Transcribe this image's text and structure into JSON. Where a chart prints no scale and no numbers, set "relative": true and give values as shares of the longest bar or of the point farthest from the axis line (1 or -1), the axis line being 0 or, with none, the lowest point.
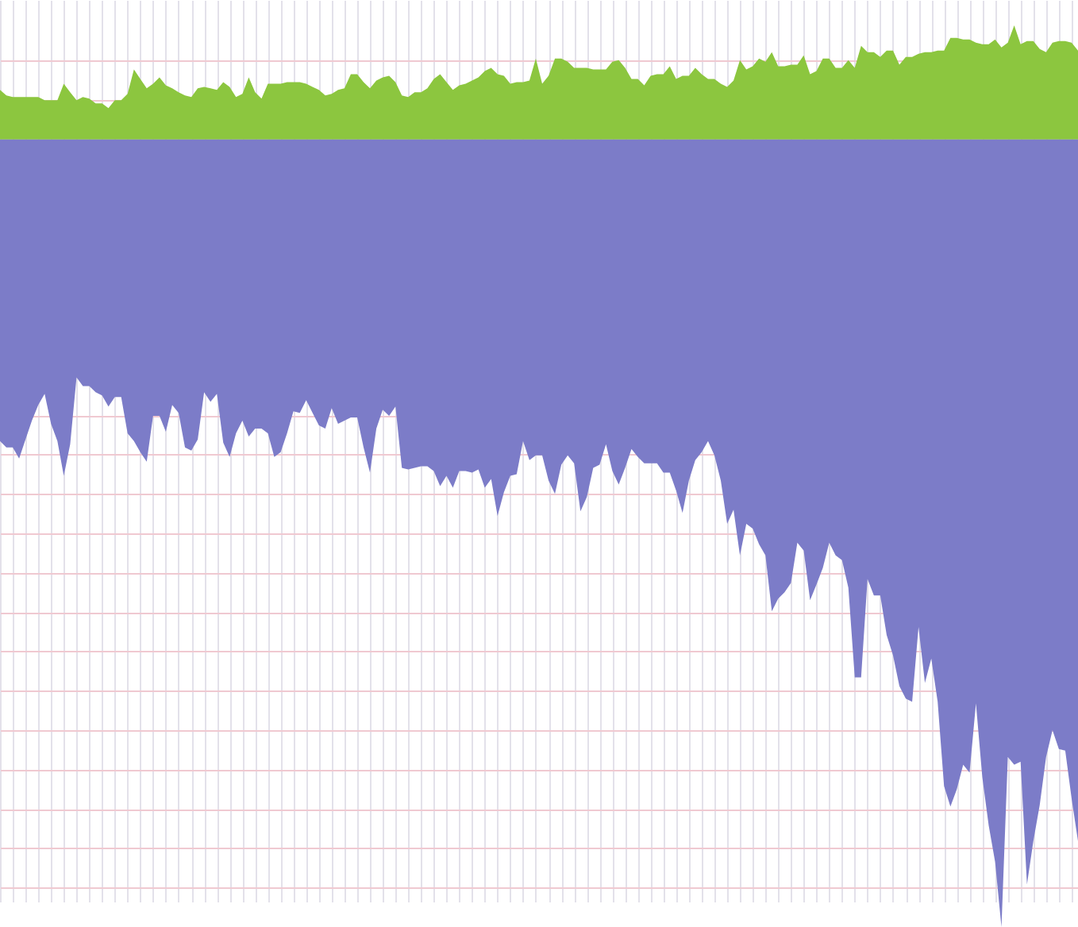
{
  "chart_data": {
    "type": "area",
    "relative": true,
    "grid": true,
    "categories": [
      null,
      null,
      null,
      null,
      null,
      null,
      null,
      null,
      null,
      null,
      null,
      null,
      null,
      null,
      null,
      null,
      null,
      null,
      null,
      null,
      null,
      null,
      null,
      null,
      null,
      null,
      null,
      null,
      null,
      null,
      null,
      null,
      null,
      null,
      null,
      null,
      null,
      null,
      null,
      null,
      null,
      null,
      null,
      null,
      null,
      null,
      null,
      null,
      null,
      null,
      null,
      null,
      null,
      null,
      null,
      null,
      null,
      null,
      null,
      null,
      null,
      null,
      null,
      null,
      null,
      null,
      null,
      null,
      null,
      null,
      null,
      null,
      null,
      null,
      null,
      null,
      null,
      null,
      null,
      null,
      null,
      null,
      null,
      null,
      null,
      null,
      null,
      null,
      null,
      null,
      null,
      null,
      null,
      null,
      null,
      null,
      null,
      null,
      null,
      null,
      null,
      null,
      null,
      null,
      null,
      null,
      null,
      null,
      null,
      null,
      null,
      null,
      null,
      null,
      null,
      null,
      null,
      null,
      null,
      null,
      null,
      null,
      null,
      null,
      null,
      null,
      null,
      null,
      null,
      null,
      null,
      null,
      null,
      null,
      null,
      null,
      null,
      null,
      null,
      null,
      null,
      null,
      null,
      null,
      null,
      null,
      null,
      null,
      null,
      null,
      null,
      null,
      null,
      null,
      null,
      null,
      null,
      null,
      null,
      null,
      null,
      null,
      null,
      null,
      null,
      null,
      null,
      null,
      null,
      null
    ],
    "series": [
      {
        "color": "#8cc63f",
        "values": [
          0.063,
          0.056,
          0.054,
          0.054,
          0.054,
          0.054,
          0.054,
          0.05,
          0.05,
          0.05,
          0.071,
          0.06,
          0.05,
          0.054,
          0.052,
          0.046,
          0.046,
          0.04,
          0.05,
          0.05,
          0.058,
          0.089,
          0.077,
          0.065,
          0.071,
          0.079,
          0.069,
          0.065,
          0.06,
          0.056,
          0.054,
          0.065,
          0.067,
          0.065,
          0.063,
          0.073,
          0.067,
          0.054,
          0.058,
          0.079,
          0.06,
          0.052,
          0.071,
          0.071,
          0.071,
          0.073,
          0.073,
          0.073,
          0.071,
          0.067,
          0.063,
          0.056,
          0.058,
          0.063,
          0.065,
          0.083,
          0.083,
          0.073,
          0.065,
          0.075,
          0.079,
          0.081,
          0.073,
          0.056,
          0.054,
          0.06,
          0.06,
          0.065,
          0.077,
          0.083,
          0.073,
          0.063,
          0.069,
          0.071,
          0.075,
          0.079,
          0.087,
          0.091,
          0.083,
          0.081,
          0.071,
          0.073,
          0.073,
          0.075,
          0.103,
          0.071,
          0.081,
          0.103,
          0.103,
          0.099,
          0.091,
          0.091,
          0.091,
          0.089,
          0.089,
          0.089,
          0.099,
          0.101,
          0.091,
          0.077,
          0.077,
          0.069,
          0.081,
          0.083,
          0.083,
          0.093,
          0.077,
          0.081,
          0.081,
          0.091,
          0.083,
          0.077,
          0.077,
          0.071,
          0.067,
          0.075,
          0.101,
          0.089,
          0.093,
          0.103,
          0.099,
          0.111,
          0.093,
          0.093,
          0.095,
          0.095,
          0.107,
          0.083,
          0.087,
          0.103,
          0.103,
          0.091,
          0.091,
          0.101,
          0.091,
          0.119,
          0.111,
          0.111,
          0.105,
          0.113,
          0.113,
          0.095,
          0.105,
          0.105,
          0.109,
          0.111,
          0.111,
          0.113,
          0.113,
          0.129,
          0.129,
          0.127,
          0.127,
          0.123,
          0.121,
          0.121,
          0.127,
          0.117,
          0.123,
          0.145,
          0.121,
          0.125,
          0.125,
          0.115,
          0.111,
          0.123,
          0.125,
          0.125,
          0.123,
          0.113
        ]
      },
      {
        "color": "#7c7cc8",
        "values": [
          -0.383,
          -0.391,
          -0.391,
          -0.405,
          -0.381,
          -0.357,
          -0.337,
          -0.323,
          -0.361,
          -0.383,
          -0.427,
          -0.387,
          -0.302,
          -0.313,
          -0.313,
          -0.321,
          -0.325,
          -0.339,
          -0.327,
          -0.327,
          -0.373,
          -0.383,
          -0.397,
          -0.409,
          -0.351,
          -0.351,
          -0.371,
          -0.337,
          -0.347,
          -0.391,
          -0.395,
          -0.381,
          -0.321,
          -0.333,
          -0.323,
          -0.385,
          -0.403,
          -0.373,
          -0.357,
          -0.377,
          -0.367,
          -0.367,
          -0.373,
          -0.403,
          -0.397,
          -0.373,
          -0.345,
          -0.347,
          -0.331,
          -0.347,
          -0.363,
          -0.367,
          -0.341,
          -0.361,
          -0.357,
          -0.353,
          -0.353,
          -0.391,
          -0.423,
          -0.367,
          -0.343,
          -0.351,
          -0.339,
          -0.417,
          -0.419,
          -0.417,
          -0.415,
          -0.415,
          -0.421,
          -0.44,
          -0.427,
          -0.442,
          -0.421,
          -0.421,
          -0.423,
          -0.419,
          -0.442,
          -0.431,
          -0.478,
          -0.448,
          -0.427,
          -0.425,
          -0.383,
          -0.407,
          -0.401,
          -0.401,
          -0.433,
          -0.45,
          -0.413,
          -0.401,
          -0.411,
          -0.472,
          -0.454,
          -0.417,
          -0.413,
          -0.387,
          -0.421,
          -0.438,
          -0.417,
          -0.393,
          -0.403,
          -0.411,
          -0.411,
          -0.411,
          -0.423,
          -0.423,
          -0.446,
          -0.474,
          -0.433,
          -0.407,
          -0.397,
          -0.383,
          -0.401,
          -0.433,
          -0.488,
          -0.47,
          -0.528,
          -0.488,
          -0.494,
          -0.514,
          -0.528,
          -0.599,
          -0.583,
          -0.575,
          -0.563,
          -0.512,
          -0.522,
          -0.585,
          -0.565,
          -0.544,
          -0.512,
          -0.528,
          -0.534,
          -0.569,
          -0.683,
          -0.683,
          -0.558,
          -0.579,
          -0.579,
          -0.629,
          -0.655,
          -0.694,
          -0.71,
          -0.714,
          -0.619,
          -0.69,
          -0.659,
          -0.714,
          -0.821,
          -0.847,
          -0.825,
          -0.794,
          -0.804,
          -0.716,
          -0.81,
          -0.871,
          -0.917,
          -1,
          -0.784,
          -0.794,
          -0.79,
          -0.946,
          -0.891,
          -0.845,
          -0.784,
          -0.75,
          -0.774,
          -0.776,
          -0.837,
          -0.891
        ]
      }
    ]
  }
}
